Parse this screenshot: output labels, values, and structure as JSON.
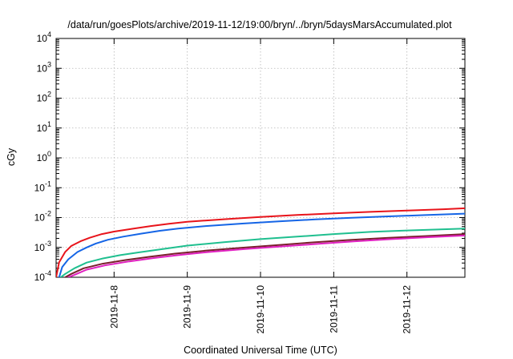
{
  "chart_data": {
    "type": "line",
    "title": "/data/run/goesPlots/archive/2019-11-12/19:00/bryn/../bryn/5daysMarsAccumulated.plot",
    "xlabel": "Coordinated Universal Time (UTC)",
    "ylabel": "cGy",
    "yscale": "log",
    "ylim": [
      0.0001,
      10000
    ],
    "xlim": [
      "2019-11-07T05:00",
      "2019-11-12T19:00"
    ],
    "x_ticks": [
      "2019-11-8",
      "2019-11-9",
      "2019-11-10",
      "2019-11-11",
      "2019-11-12"
    ],
    "y_ticks": [
      {
        "base": "10",
        "exp": "-4"
      },
      {
        "base": "10",
        "exp": "-3"
      },
      {
        "base": "10",
        "exp": "-2"
      },
      {
        "base": "10",
        "exp": "-1"
      },
      {
        "base": "10",
        "exp": "0"
      },
      {
        "base": "10",
        "exp": "1"
      },
      {
        "base": "10",
        "exp": "2"
      },
      {
        "base": "10",
        "exp": "3"
      },
      {
        "base": "10",
        "exp": "4"
      }
    ],
    "grid": true,
    "series": [
      {
        "color": "#e8141b",
        "x": [
          "2019-11-07T05:00",
          "2019-11-07T06:00",
          "2019-11-07T08:00",
          "2019-11-07T10:00",
          "2019-11-07T13:00",
          "2019-11-07T16:00",
          "2019-11-07T20:00",
          "2019-11-08T00:00",
          "2019-11-08T06:00",
          "2019-11-08T12:00",
          "2019-11-08T18:00",
          "2019-11-09T00:00",
          "2019-11-09T12:00",
          "2019-11-10T00:00",
          "2019-11-10T12:00",
          "2019-11-11T00:00",
          "2019-11-11T12:00",
          "2019-11-12T00:00",
          "2019-11-12T12:00",
          "2019-11-12T19:00"
        ],
        "values": [
          0.0001,
          0.00032,
          0.00071,
          0.00112,
          0.0016,
          0.0021,
          0.0028,
          0.0034,
          0.0042,
          0.0052,
          0.0062,
          0.0072,
          0.0088,
          0.0105,
          0.0122,
          0.0138,
          0.0155,
          0.0172,
          0.019,
          0.0205
        ]
      },
      {
        "color": "#1565e6",
        "x": [
          "2019-11-07T06:00",
          "2019-11-07T07:00",
          "2019-11-07T09:00",
          "2019-11-07T12:00",
          "2019-11-07T15:00",
          "2019-11-07T18:00",
          "2019-11-07T22:00",
          "2019-11-08T03:00",
          "2019-11-08T09:00",
          "2019-11-08T15:00",
          "2019-11-08T21:00",
          "2019-11-09T06:00",
          "2019-11-09T18:00",
          "2019-11-10T06:00",
          "2019-11-10T18:00",
          "2019-11-11T06:00",
          "2019-11-11T18:00",
          "2019-11-12T06:00",
          "2019-11-12T19:00"
        ],
        "values": [
          0.0001,
          0.00022,
          0.0004,
          0.0007,
          0.001,
          0.00135,
          0.0018,
          0.0023,
          0.0029,
          0.0036,
          0.0043,
          0.0052,
          0.0063,
          0.0075,
          0.0087,
          0.0099,
          0.011,
          0.0121,
          0.0135
        ]
      },
      {
        "color": "#1fbf8f",
        "x": [
          "2019-11-07T06:30",
          "2019-11-07T08:00",
          "2019-11-07T11:00",
          "2019-11-07T15:00",
          "2019-11-07T20:00",
          "2019-11-08T02:00",
          "2019-11-08T08:00",
          "2019-11-08T16:00",
          "2019-11-09T00:00",
          "2019-11-09T12:00",
          "2019-11-10T00:00",
          "2019-11-10T12:00",
          "2019-11-11T00:00",
          "2019-11-11T12:00",
          "2019-11-12T00:00",
          "2019-11-12T19:00"
        ],
        "values": [
          0.0001,
          0.00013,
          0.0002,
          0.00031,
          0.00042,
          0.00055,
          0.00068,
          0.00088,
          0.00115,
          0.0015,
          0.0019,
          0.0023,
          0.0028,
          0.0033,
          0.0037,
          0.0043
        ]
      },
      {
        "color": "#7a1f2b",
        "x": [
          "2019-11-07T08:00",
          "2019-11-07T10:00",
          "2019-11-07T14:00",
          "2019-11-07T20:00",
          "2019-11-08T04:00",
          "2019-11-08T12:00",
          "2019-11-08T20:00",
          "2019-11-09T06:00",
          "2019-11-09T18:00",
          "2019-11-10T06:00",
          "2019-11-10T18:00",
          "2019-11-11T06:00",
          "2019-11-11T18:00",
          "2019-11-12T06:00",
          "2019-11-12T19:00"
        ],
        "values": [
          0.0001,
          0.00013,
          0.0002,
          0.00028,
          0.00038,
          0.00049,
          0.00062,
          0.00078,
          0.00098,
          0.0012,
          0.0015,
          0.0018,
          0.0021,
          0.0024,
          0.0028
        ]
      },
      {
        "color": "#e020c0",
        "x": [
          "2019-11-07T09:00",
          "2019-11-07T11:00",
          "2019-11-07T15:00",
          "2019-11-07T21:00",
          "2019-11-08T05:00",
          "2019-11-08T13:00",
          "2019-11-08T21:00",
          "2019-11-09T07:00",
          "2019-11-09T19:00",
          "2019-11-10T07:00",
          "2019-11-10T19:00",
          "2019-11-11T07:00",
          "2019-11-11T19:00",
          "2019-11-12T07:00",
          "2019-11-12T19:00"
        ],
        "values": [
          0.0001,
          0.00012,
          0.00018,
          0.00025,
          0.00034,
          0.00044,
          0.00055,
          0.0007,
          0.00088,
          0.00108,
          0.00132,
          0.0016,
          0.0019,
          0.0022,
          0.0025
        ]
      }
    ]
  }
}
